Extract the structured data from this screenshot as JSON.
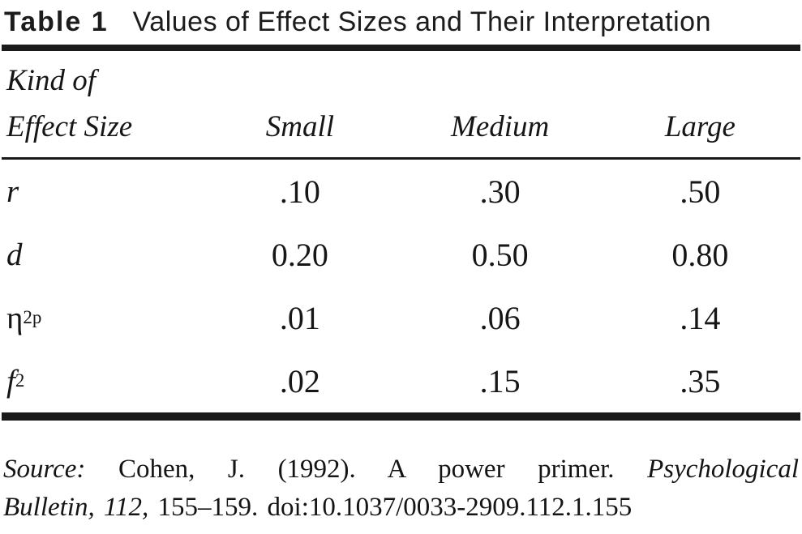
{
  "caption": {
    "label": "Table 1",
    "title": "Values of Effect Sizes and Their Interpretation"
  },
  "table": {
    "header": {
      "kind_line1": "Kind of",
      "kind_line2": "Effect Size",
      "small": "Small",
      "medium": "Medium",
      "large": "Large"
    },
    "rows": [
      {
        "base": "r",
        "sup": "",
        "sub": "",
        "small": ".10",
        "medium": ".30",
        "large": ".50"
      },
      {
        "base": "d",
        "sup": "",
        "sub": "",
        "small": "0.20",
        "medium": "0.50",
        "large": "0.80"
      },
      {
        "base": "η",
        "sup": "2",
        "sub": "p",
        "small": ".01",
        "medium": ".06",
        "large": ".14"
      },
      {
        "base": "f",
        "sup": "2",
        "sub": "",
        "small": ".02",
        "medium": ".15",
        "large": ".35"
      }
    ]
  },
  "source": {
    "label": "Source:",
    "text1": "Cohen, J. (1992). A power primer.",
    "italic1": "Psychological",
    "italic2": "Bulletin, 112,",
    "text2": "155–159. doi:10.1037/0033-2909.112.1.155"
  },
  "colors": {
    "text": "#161616",
    "rule": "#1a1a1a",
    "background": "#ffffff"
  }
}
